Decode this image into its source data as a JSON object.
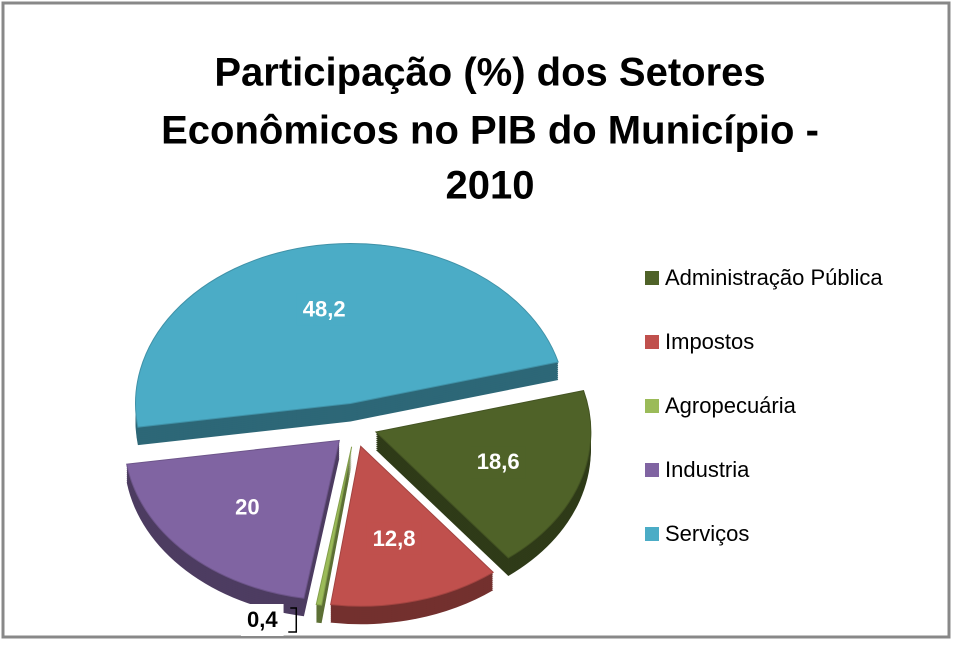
{
  "chart_data": {
    "type": "pie",
    "title": [
      "Participação (%) dos Setores",
      "Econômicos no PIB do Município -",
      "2010"
    ],
    "categories": [
      "Administração Pública",
      "Impostos",
      "Agropecuária",
      "Industria",
      "Serviços"
    ],
    "values": [
      18.6,
      12.8,
      0.4,
      20,
      48.2
    ],
    "value_labels": [
      "18,6",
      "12,8",
      "0,4",
      "20",
      "48,2"
    ],
    "colors": [
      "#4f6228",
      "#c0504d",
      "#9bbb59",
      "#8064a2",
      "#4bacc6"
    ],
    "legend": "right"
  }
}
